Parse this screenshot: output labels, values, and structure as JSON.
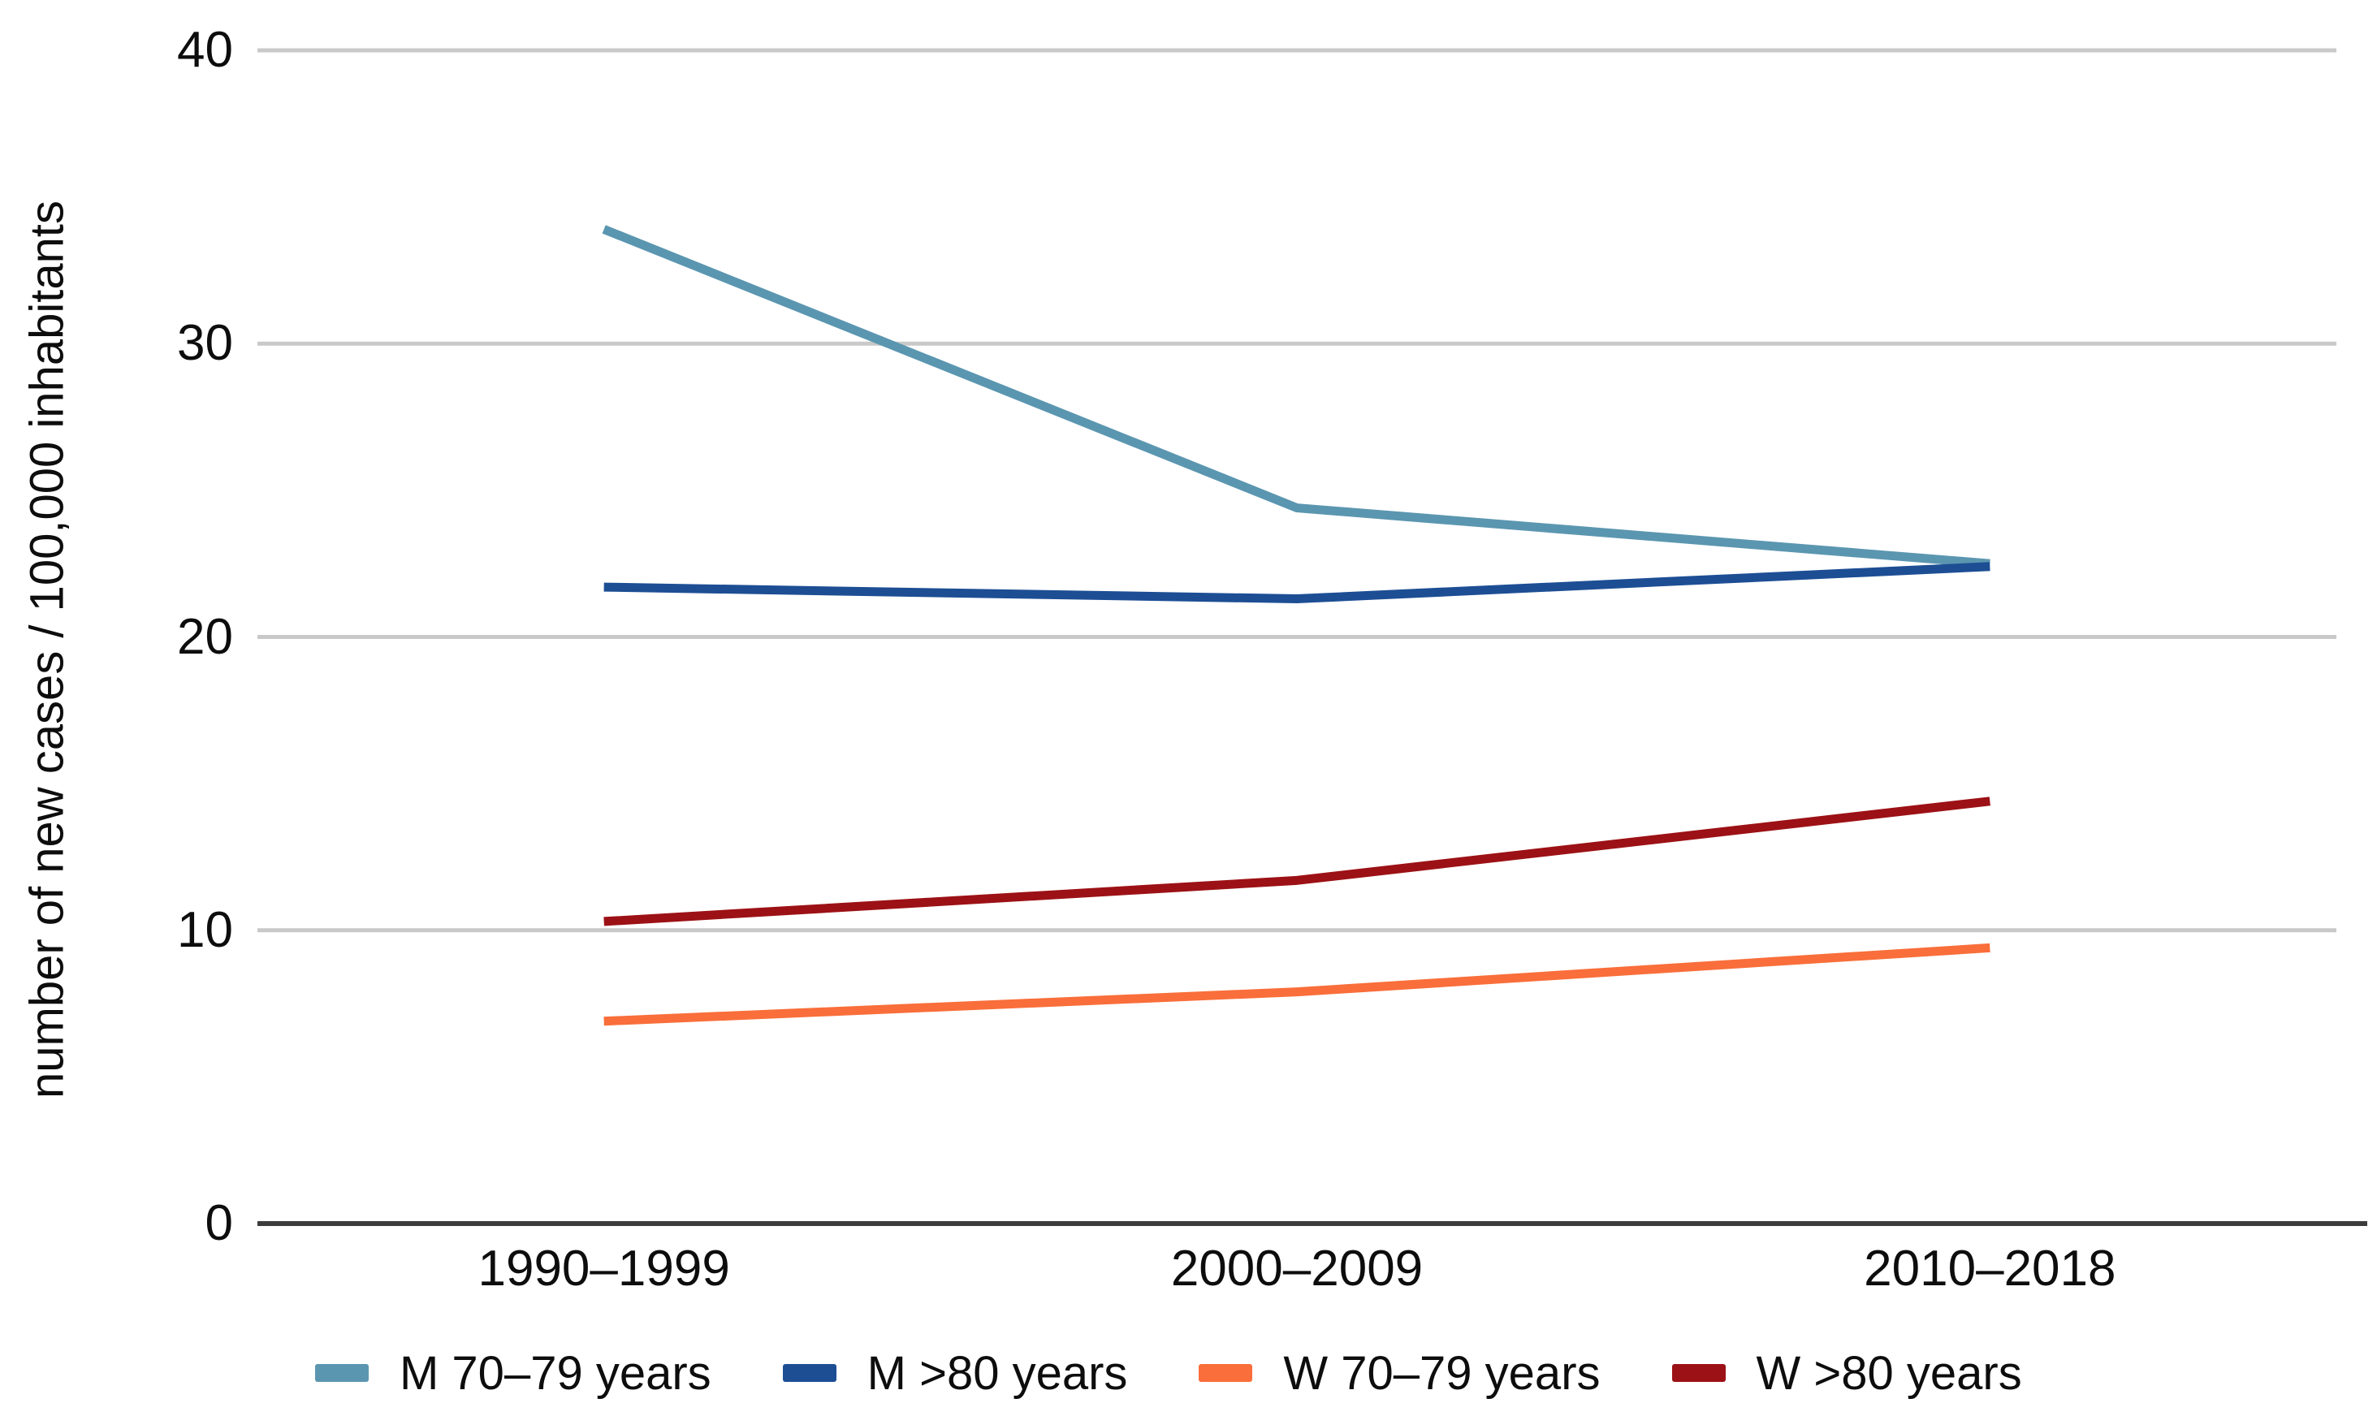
{
  "chart_data": {
    "type": "line",
    "title": "",
    "xlabel": "",
    "ylabel": "number of new cases / 100,000 inhabitants",
    "categories": [
      "1990–1999",
      "2000–2009",
      "2010–2018"
    ],
    "series": [
      {
        "name": "M 70–79 years",
        "color": "#5b96b0",
        "values": [
          33.9,
          24.4,
          22.5
        ]
      },
      {
        "name": "M >80 years",
        "color": "#1d4e94",
        "values": [
          21.7,
          21.3,
          22.4
        ]
      },
      {
        "name": "W 70–79 years",
        "color": "#f96e3a",
        "values": [
          6.9,
          7.9,
          9.4
        ]
      },
      {
        "name": "W >80 years",
        "color": "#9c1115",
        "values": [
          10.3,
          11.7,
          14.4
        ]
      }
    ],
    "ylim": [
      0,
      40
    ],
    "yticks": [
      0,
      10,
      20,
      30,
      40
    ],
    "grid": "horizontal",
    "legend_position": "bottom",
    "colors": {
      "gridline": "#c9c9c9",
      "axis": "#3c3c3c",
      "text": "#0d0d0d",
      "background": "#ffffff"
    }
  }
}
